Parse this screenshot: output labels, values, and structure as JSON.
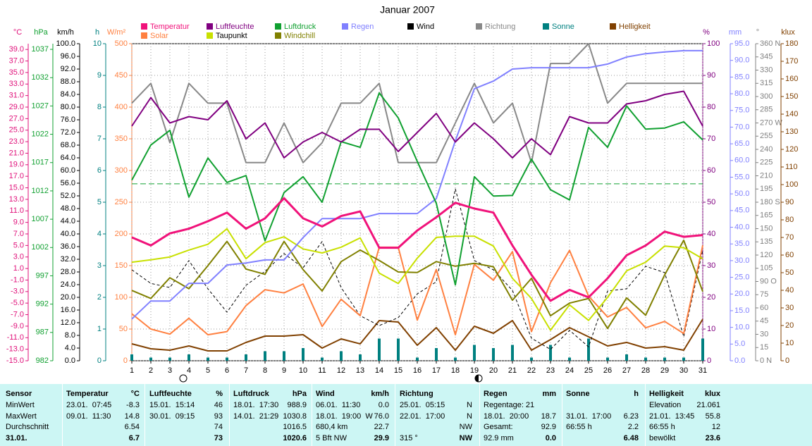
{
  "chart_data": {
    "type": "line",
    "title": "Januar 2007",
    "x": [
      1,
      2,
      3,
      4,
      5,
      6,
      7,
      8,
      9,
      10,
      11,
      12,
      13,
      14,
      15,
      16,
      17,
      18,
      19,
      20,
      21,
      22,
      23,
      24,
      25,
      26,
      27,
      28,
      29,
      30,
      31
    ],
    "xlim": [
      1,
      31
    ],
    "xticks": [
      1,
      2,
      3,
      4,
      5,
      6,
      7,
      8,
      9,
      10,
      11,
      12,
      13,
      14,
      15,
      16,
      17,
      18,
      19,
      20,
      21,
      22,
      23,
      24,
      25,
      26,
      27,
      28,
      29,
      30,
      31
    ],
    "grid": true,
    "axes": [
      {
        "label": "°C",
        "color": "#e0107a",
        "lim": [
          -15,
          40
        ],
        "ticks": [
          {
            "value": 39,
            "label": "39.0"
          },
          {
            "value": 37,
            "label": "37.0"
          },
          {
            "value": 35,
            "label": "35.0"
          },
          {
            "value": 33,
            "label": "33.0"
          },
          {
            "value": 31,
            "label": "31.0"
          },
          {
            "value": 29,
            "label": "29.0"
          },
          {
            "value": 27,
            "label": "27.0"
          },
          {
            "value": 25,
            "label": "25.0"
          },
          {
            "value": 23,
            "label": "23.0"
          },
          {
            "value": 21,
            "label": "21.0"
          },
          {
            "value": 19,
            "label": "19.0"
          },
          {
            "value": 17,
            "label": "17.0"
          },
          {
            "value": 15,
            "label": "15.0"
          },
          {
            "value": 13,
            "label": "13.0"
          },
          {
            "value": 11,
            "label": "11.0"
          },
          {
            "value": 9,
            "label": "9.0"
          },
          {
            "value": 7,
            "label": "7.0"
          },
          {
            "value": 5,
            "label": "5.0"
          },
          {
            "value": 3,
            "label": "3.0"
          },
          {
            "value": 1,
            "label": "1.0"
          },
          {
            "value": -1,
            "label": "-1.0"
          },
          {
            "value": -3,
            "label": "-3.0"
          },
          {
            "value": -5,
            "label": "-5.0"
          },
          {
            "value": -7,
            "label": "-7.0"
          },
          {
            "value": -9,
            "label": "-9.0"
          },
          {
            "value": -11,
            "label": "-11.0"
          },
          {
            "value": -13,
            "label": "-13.0"
          },
          {
            "value": -15,
            "label": "-15.0"
          }
        ]
      },
      {
        "label": "hPa",
        "color": "#10a030",
        "lim": [
          982,
          1038
        ],
        "ticks": [
          1037,
          1032,
          1027,
          1022,
          1017,
          1012,
          1007,
          1002,
          997,
          992,
          987,
          982
        ]
      },
      {
        "label": "km/h",
        "color": "#000000",
        "lim": [
          0,
          100
        ],
        "ticks": [
          {
            "value": 100,
            "label": "100.0"
          },
          {
            "value": 96,
            "label": "96.0"
          },
          {
            "value": 92,
            "label": "92.0"
          },
          {
            "value": 88,
            "label": "88.0"
          },
          {
            "value": 84,
            "label": "84.0"
          },
          {
            "value": 80,
            "label": "80.0"
          },
          {
            "value": 76,
            "label": "76.0"
          },
          {
            "value": 72,
            "label": "72.0"
          },
          {
            "value": 68,
            "label": "68.0"
          },
          {
            "value": 64,
            "label": "64.0"
          },
          {
            "value": 60,
            "label": "60.0"
          },
          {
            "value": 56,
            "label": "56.0"
          },
          {
            "value": 52,
            "label": "52.0"
          },
          {
            "value": 48,
            "label": "48.0"
          },
          {
            "value": 44,
            "label": "44.0"
          },
          {
            "value": 40,
            "label": "40.0"
          },
          {
            "value": 36,
            "label": "36.0"
          },
          {
            "value": 32,
            "label": "32.0"
          },
          {
            "value": 28,
            "label": "28.0"
          },
          {
            "value": 24,
            "label": "24.0"
          },
          {
            "value": 20,
            "label": "20.0"
          },
          {
            "value": 16,
            "label": "16.0"
          },
          {
            "value": 12,
            "label": "12.0"
          },
          {
            "value": 8,
            "label": "8.0"
          },
          {
            "value": 4,
            "label": "4.0"
          },
          {
            "value": 0,
            "label": "0.0"
          }
        ]
      },
      {
        "label": "h",
        "color": "#008080",
        "lim": [
          0,
          10
        ],
        "ticks": [
          10,
          9,
          8,
          7,
          6,
          5,
          4,
          3,
          2,
          1,
          0
        ]
      },
      {
        "label": "W/m²",
        "color": "#ff8040",
        "lim": [
          0,
          500
        ],
        "ticks": [
          500,
          450,
          400,
          350,
          300,
          250,
          200,
          150,
          100,
          50,
          0
        ]
      },
      {
        "label": "%",
        "color": "#800080",
        "lim": [
          0,
          100
        ],
        "ticks": [
          100,
          90,
          80,
          70,
          60,
          50,
          40,
          30,
          20,
          10,
          0
        ]
      },
      {
        "label": "mm",
        "color": "#8080ff",
        "lim": [
          0,
          95
        ],
        "ticks": [
          {
            "value": 95,
            "label": "95.0"
          },
          {
            "value": 90,
            "label": "90.0"
          },
          {
            "value": 85,
            "label": "85.0"
          },
          {
            "value": 80,
            "label": "80.0"
          },
          {
            "value": 75,
            "label": "75.0"
          },
          {
            "value": 70,
            "label": "70.0"
          },
          {
            "value": 65,
            "label": "65.0"
          },
          {
            "value": 60,
            "label": "60.0"
          },
          {
            "value": 55,
            "label": "55.0"
          },
          {
            "value": 50,
            "label": "50.0"
          },
          {
            "value": 45,
            "label": "45.0"
          },
          {
            "value": 40,
            "label": "40.0"
          },
          {
            "value": 35,
            "label": "35.0"
          },
          {
            "value": 30,
            "label": "30.0"
          },
          {
            "value": 25,
            "label": "25.0"
          },
          {
            "value": 20,
            "label": "20.0"
          },
          {
            "value": 15,
            "label": "15.0"
          },
          {
            "value": 10,
            "label": "10.0"
          },
          {
            "value": 5,
            "label": "5.0"
          },
          {
            "value": 0,
            "label": "0.0"
          }
        ]
      },
      {
        "label": "°",
        "color": "#808080",
        "lim": [
          0,
          360
        ],
        "ticks": [
          {
            "value": 360,
            "label": "360 N"
          },
          345,
          330,
          315,
          300,
          285,
          {
            "value": 270,
            "label": "270 W"
          },
          255,
          240,
          225,
          210,
          195,
          {
            "value": 180,
            "label": "180 S"
          },
          165,
          150,
          135,
          120,
          105,
          {
            "value": 90,
            "label": "90 O"
          },
          75,
          60,
          45,
          30,
          15,
          {
            "value": 0,
            "label": "0 N"
          }
        ]
      },
      {
        "label": "klux",
        "color": "#804000",
        "lim": [
          0,
          180
        ],
        "ticks": [
          180,
          170,
          160,
          150,
          140,
          130,
          120,
          110,
          100,
          90,
          80,
          70,
          60,
          50,
          40,
          30,
          20,
          10,
          0
        ]
      }
    ],
    "reference_lines": [
      {
        "axis": 1,
        "value": 1013.25,
        "color": "#10a030"
      }
    ],
    "series": [
      {
        "name": "Sonne",
        "color": "#008080",
        "axis": 3,
        "kind": "bar",
        "values": [
          0.2,
          0.1,
          0.1,
          0.2,
          0.1,
          0.1,
          0.2,
          0.3,
          0.3,
          0.4,
          0.1,
          0.3,
          0.2,
          0.7,
          0.7,
          0.1,
          0.4,
          0.1,
          0.5,
          0.4,
          0.5,
          0.1,
          0.5,
          0.1,
          0.7,
          0.1,
          0.2,
          0.1,
          0.1,
          0.1,
          0.7
        ]
      },
      {
        "name": "Helligkeit",
        "color": "#804000",
        "axis": 8,
        "values": [
          9.6,
          6.8,
          6.0,
          8.4,
          5.6,
          5.6,
          10.4,
          14.0,
          14.0,
          14.8,
          7.2,
          12.4,
          9.6,
          22.8,
          22.0,
          8.8,
          18.8,
          6.0,
          19.6,
          15.6,
          22.8,
          6.0,
          12.0,
          18.8,
          13.6,
          8.4,
          10.4,
          7.2,
          8.0,
          6.0,
          23.6
        ]
      },
      {
        "name": "Wind",
        "color": "#000000",
        "axis": 2,
        "dash": true,
        "values": [
          28.7,
          24.4,
          23.1,
          31.6,
          22.7,
          15.3,
          23.8,
          28.2,
          33.8,
          29.3,
          37.6,
          23.1,
          14.2,
          11.1,
          13.6,
          21.1,
          24.9,
          54.2,
          31.6,
          28.7,
          22.2,
          7.1,
          3.6,
          9.6,
          4.4,
          22.0,
          22.7,
          29.8,
          27.8,
          7.6,
          34.9
        ]
      },
      {
        "name": "Solar",
        "color": "#ff8040",
        "axis": 4,
        "values": [
          74,
          50,
          42,
          67,
          41,
          46,
          87,
          112,
          107,
          121,
          54,
          97,
          71,
          179,
          179,
          64,
          144,
          41,
          152,
          127,
          172,
          46,
          123,
          174,
          102,
          69,
          84,
          52,
          62,
          43,
          182
        ]
      },
      {
        "name": "Windchill",
        "color": "#808000",
        "axis": 0,
        "values": [
          -2.8,
          -4.2,
          -0.6,
          -2.5,
          1.5,
          5.7,
          0.9,
          0.0,
          5.7,
          0.8,
          -2.9,
          2.2,
          4.2,
          2.4,
          0.4,
          0.3,
          2.2,
          1.4,
          1.9,
          1.3,
          -4.5,
          -0.7,
          -7.2,
          -5.0,
          -4.2,
          -9.4,
          -4.1,
          -7.1,
          -0.1,
          5.9,
          -3.0
        ]
      },
      {
        "name": "Taupunkt",
        "color": "#c8e000",
        "axis": 0,
        "values": [
          2.1,
          2.5,
          3.0,
          4.2,
          5.2,
          7.9,
          2.7,
          5.5,
          6.5,
          4.4,
          3.7,
          4.7,
          6.3,
          0.2,
          -1.6,
          2.8,
          6.4,
          6.6,
          6.6,
          4.9,
          -0.7,
          -4.2,
          -9.7,
          -5.3,
          -8.0,
          -4.0,
          0.6,
          2.1,
          4.9,
          4.6,
          2.7
        ]
      },
      {
        "name": "Richtung",
        "color": "#888888",
        "axis": 7,
        "values": [
          292.5,
          315,
          247.5,
          315,
          292.5,
          292.5,
          225,
          225,
          270,
          225,
          247.5,
          292.5,
          292.5,
          315,
          225,
          225,
          225,
          270,
          315,
          270,
          292.5,
          225,
          337.5,
          337.5,
          360,
          292.5,
          315,
          315,
          315,
          315,
          315
        ]
      },
      {
        "name": "Regen",
        "color": "#8080ff",
        "axis": 6,
        "values": [
          12.5,
          17.9,
          17.9,
          23.2,
          23.2,
          28.7,
          29.3,
          30.2,
          30.2,
          36.9,
          42.6,
          42.6,
          42.6,
          44.1,
          44.1,
          44.1,
          48.6,
          65.9,
          81.5,
          83.8,
          87.4,
          87.8,
          87.8,
          87.8,
          87.8,
          88.9,
          91.0,
          92.0,
          92.5,
          92.9,
          92.9
        ]
      },
      {
        "name": "Luftdruck",
        "color": "#10a030",
        "axis": 1,
        "values": [
          1013.9,
          1020.1,
          1022.7,
          1010.9,
          1017.8,
          1013.5,
          1014.7,
          1003.2,
          1011.7,
          1014.5,
          1010.0,
          1020.7,
          1019.7,
          1029.3,
          1024.9,
          1017.2,
          1009.8,
          995.4,
          1014.5,
          1011.1,
          1011.2,
          1017.6,
          1012.2,
          1010.4,
          1023.2,
          1019.7,
          1027.0,
          1022.9,
          1023.1,
          1024.2,
          1021.0
        ]
      },
      {
        "name": "Luftfeuchte",
        "color": "#800080",
        "axis": 5,
        "values": [
          74,
          83,
          75,
          77,
          76,
          82,
          70,
          75,
          64,
          69,
          72,
          69,
          73,
          73,
          66,
          72,
          78,
          69,
          75,
          70,
          64,
          70,
          65,
          77,
          75,
          75,
          81,
          82,
          84,
          85,
          74
        ]
      },
      {
        "name": "Temperatur",
        "color": "#f0127a",
        "axis": 0,
        "width": 3,
        "values": [
          6.4,
          5.0,
          7.1,
          7.9,
          9.2,
          10.7,
          7.9,
          9.7,
          13.2,
          9.7,
          8.3,
          10.1,
          10.9,
          4.6,
          4.6,
          7.6,
          9.9,
          12.4,
          11.4,
          10.7,
          5.0,
          -0.1,
          -4.6,
          -2.7,
          -4.0,
          -0.7,
          3.3,
          5.0,
          7.4,
          6.5,
          6.8
        ]
      }
    ]
  },
  "summary": {
    "row_labels": [
      "Sensor",
      "MinWert",
      "MaxWert",
      "Durchschnitt",
      "31.01."
    ],
    "blocks": [
      {
        "title": "Temperatur",
        "unit": "°C",
        "rows": [
          [
            "23.01.  07:45",
            "-8.3"
          ],
          [
            "09.01.  11:30",
            "14.8"
          ],
          [
            null,
            "6.54"
          ],
          [
            null,
            "6.7"
          ]
        ]
      },
      {
        "title": "Luftfeuchte",
        "unit": "%",
        "rows": [
          [
            "15.01.  15:14",
            "46"
          ],
          [
            "30.01.  09:15",
            "93"
          ],
          [
            null,
            "74"
          ],
          [
            null,
            "73"
          ]
        ]
      },
      {
        "title": "Luftdruck",
        "unit": "hPa",
        "rows": [
          [
            "18.01.  17:30",
            "988.9"
          ],
          [
            "14.01.  21:29",
            "1030.8"
          ],
          [
            null,
            "1016.5"
          ],
          [
            null,
            "1020.6"
          ]
        ]
      },
      {
        "title": "Wind",
        "unit": "km/h",
        "rows": [
          [
            "06.01.  11:30",
            "0.0"
          ],
          [
            "18.01.  19:00  W",
            "76.0"
          ],
          [
            "680,4 km",
            "22.7"
          ],
          [
            "5 Bft NW",
            "29.9"
          ]
        ]
      },
      {
        "title": "Richtung",
        "rows": [
          [
            "25.01.  05:15",
            "N"
          ],
          [
            "22.01.  17:00",
            "N"
          ],
          [
            null,
            "NW"
          ],
          [
            "315 °",
            "NW"
          ]
        ]
      },
      {
        "title": "Regen",
        "unit": "mm",
        "rows": [
          [
            "Regentage: 21",
            null
          ],
          [
            "18.01.  20:00",
            "18.7"
          ],
          [
            "Gesamt:",
            "92.9"
          ],
          [
            "92.9 mm",
            "0.0"
          ]
        ]
      },
      {
        "title": "Sonne",
        "unit": "h",
        "rows": [
          [
            null,
            null
          ],
          [
            "31.01.  17:00",
            "6.23"
          ],
          [
            "66:55 h",
            "2.2"
          ],
          [
            null,
            "6.48"
          ]
        ]
      },
      {
        "title": "Helligkeit",
        "unit": "klux",
        "rows": [
          [
            "Elevation",
            "21.061"
          ],
          [
            "21.01.  13:45",
            "55.8"
          ],
          [
            "66:55 h",
            "12"
          ],
          [
            "bewölkt",
            "23.6"
          ]
        ]
      }
    ]
  }
}
